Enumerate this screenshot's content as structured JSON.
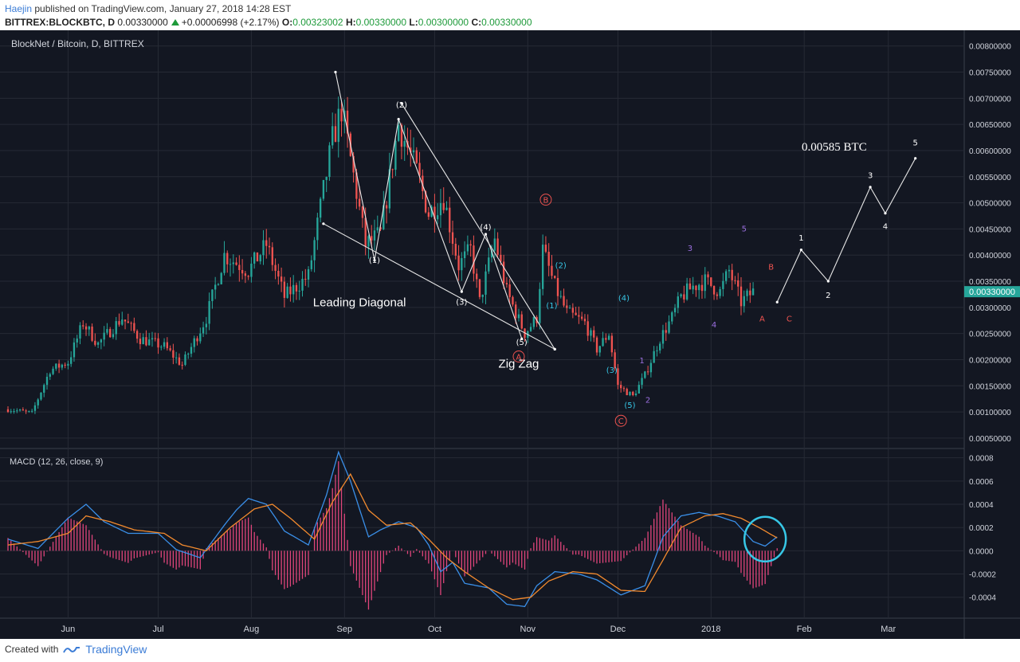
{
  "header": {
    "author": "Haejin",
    "published_text": "published on TradingView.com, January 27, 2018 14:28 EST",
    "symbol_line": "BITTREX:BLOCKBTC, D",
    "last_price": "0.00330000",
    "change": "+0.00006998 (+2.17%)",
    "o_label": "O:",
    "o_value": "0.00323002",
    "h_label": "H:",
    "h_value": "0.00330000",
    "l_label": "L:",
    "l_value": "0.00300000",
    "c_label": "C:",
    "c_value": "0.00330000"
  },
  "footer": {
    "created_with": "Created with",
    "brand": "TradingView"
  },
  "colors": {
    "up": "#26a69a",
    "down": "#ef5350",
    "bg": "#131722",
    "grid": "#262a35",
    "macd": "#3a8fe8",
    "signal": "#f28a2e",
    "hist": "#e0457b",
    "cyan": "#37c7e6",
    "purple": "#9b6fe0",
    "red": "#ef5350"
  },
  "chart_data": [
    {
      "type": "candlestick",
      "title": "BlockNet / Bitcoin, D, BITTREX",
      "ylim": [
        0.0003,
        0.0083
      ],
      "y_ticks": [
        "0.00050000",
        "0.00100000",
        "0.00150000",
        "0.00200000",
        "0.00250000",
        "0.00300000",
        "0.00350000",
        "0.00400000",
        "0.00450000",
        "0.00500000",
        "0.00550000",
        "0.00600000",
        "0.00650000",
        "0.00700000",
        "0.00750000",
        "0.00800000"
      ],
      "x_labels": [
        "Jun",
        "Jul",
        "Aug",
        "Sep",
        "Oct",
        "Nov",
        "Dec",
        "2018",
        "Feb",
        "Mar"
      ],
      "x_label_days": [
        20,
        50,
        81,
        112,
        142,
        173,
        203,
        234,
        265,
        293
      ],
      "last_price_tag": "0.00330000",
      "price_anchors": [
        [
          0,
          0.00105
        ],
        [
          8,
          0.00098
        ],
        [
          14,
          0.0018
        ],
        [
          20,
          0.00195
        ],
        [
          25,
          0.0027
        ],
        [
          30,
          0.0023
        ],
        [
          38,
          0.0028
        ],
        [
          44,
          0.0024
        ],
        [
          52,
          0.00225
        ],
        [
          58,
          0.0019
        ],
        [
          66,
          0.0028
        ],
        [
          72,
          0.004
        ],
        [
          80,
          0.0037
        ],
        [
          86,
          0.0042
        ],
        [
          92,
          0.0032
        ],
        [
          100,
          0.0036
        ],
        [
          108,
          0.0062
        ],
        [
          111,
          0.0068
        ],
        [
          116,
          0.0052
        ],
        [
          119,
          0.0042
        ],
        [
          124,
          0.0044
        ],
        [
          130,
          0.0065
        ],
        [
          136,
          0.0056
        ],
        [
          140,
          0.0048
        ],
        [
          145,
          0.0051
        ],
        [
          150,
          0.0038
        ],
        [
          154,
          0.0041
        ],
        [
          157,
          0.0031
        ],
        [
          162,
          0.0043
        ],
        [
          166,
          0.0033
        ],
        [
          172,
          0.0025
        ],
        [
          176,
          0.0028
        ],
        [
          178,
          0.0041
        ],
        [
          182,
          0.0034
        ],
        [
          186,
          0.0029
        ],
        [
          192,
          0.0027
        ],
        [
          196,
          0.0022
        ],
        [
          200,
          0.0025
        ],
        [
          203,
          0.0015
        ],
        [
          208,
          0.0013
        ],
        [
          212,
          0.0017
        ],
        [
          217,
          0.0024
        ],
        [
          221,
          0.0028
        ],
        [
          224,
          0.0032
        ],
        [
          228,
          0.0034
        ],
        [
          232,
          0.0035
        ],
        [
          237,
          0.0033
        ],
        [
          240,
          0.0037
        ],
        [
          244,
          0.0031
        ],
        [
          248,
          0.0033
        ]
      ],
      "annotations": [
        {
          "text": "Leading Diagonal",
          "day": 117,
          "price": 0.00302,
          "color": "#ffffff",
          "size": 15
        },
        {
          "text": "Zig Zag",
          "day": 170,
          "price": 0.00185,
          "color": "#ffffff",
          "size": 15
        },
        {
          "text": "0.00585 BTC",
          "day": 275,
          "price": 0.006,
          "color": "#ffffff",
          "size": 15
        },
        {
          "text": "(1)",
          "day": 122,
          "price": 0.00385,
          "color": "#ffffff",
          "size": 10
        },
        {
          "text": "(2)",
          "day": 131,
          "price": 0.00682,
          "color": "#ffffff",
          "size": 10
        },
        {
          "text": "(3)",
          "day": 151,
          "price": 0.00305,
          "color": "#ffffff",
          "size": 10
        },
        {
          "text": "(4)",
          "day": 159,
          "price": 0.00448,
          "color": "#ffffff",
          "size": 10
        },
        {
          "text": "(5)",
          "day": 171,
          "price": 0.00228,
          "color": "#ffffff",
          "size": 10
        },
        {
          "text": "(1)",
          "day": 181,
          "price": 0.00298,
          "color": "#37c7e6",
          "size": 10
        },
        {
          "text": "(2)",
          "day": 184,
          "price": 0.00375,
          "color": "#37c7e6",
          "size": 10
        },
        {
          "text": "(4)",
          "day": 205,
          "price": 0.00313,
          "color": "#37c7e6",
          "size": 10
        },
        {
          "text": "(3)",
          "day": 201,
          "price": 0.00175,
          "color": "#37c7e6",
          "size": 10
        },
        {
          "text": "(5)",
          "day": 207,
          "price": 0.00108,
          "color": "#37c7e6",
          "size": 10
        },
        {
          "text": "1",
          "day": 211,
          "price": 0.00193,
          "color": "#9b6fe0",
          "size": 10
        },
        {
          "text": "2",
          "day": 213,
          "price": 0.00118,
          "color": "#9b6fe0",
          "size": 10
        },
        {
          "text": "3",
          "day": 227,
          "price": 0.00408,
          "color": "#9b6fe0",
          "size": 10
        },
        {
          "text": "4",
          "day": 235,
          "price": 0.00262,
          "color": "#9b6fe0",
          "size": 10
        },
        {
          "text": "5",
          "day": 245,
          "price": 0.00445,
          "color": "#9b6fe0",
          "size": 10
        },
        {
          "text": "B",
          "day": 254,
          "price": 0.00372,
          "color": "#ef5350",
          "size": 10
        },
        {
          "text": "A",
          "day": 251,
          "price": 0.00273,
          "color": "#ef5350",
          "size": 10
        },
        {
          "text": "C",
          "day": 260,
          "price": 0.00273,
          "color": "#ef5350",
          "size": 10
        },
        {
          "text": "1",
          "day": 264,
          "price": 0.00428,
          "color": "#ffffff",
          "size": 10
        },
        {
          "text": "2",
          "day": 273,
          "price": 0.00318,
          "color": "#ffffff",
          "size": 10
        },
        {
          "text": "3",
          "day": 287,
          "price": 0.00547,
          "color": "#ffffff",
          "size": 10
        },
        {
          "text": "4",
          "day": 292,
          "price": 0.0045,
          "color": "#ffffff",
          "size": 10
        },
        {
          "text": "5",
          "day": 302,
          "price": 0.0061,
          "color": "#ffffff",
          "size": 10
        }
      ],
      "circled_labels": [
        {
          "text": "B",
          "day": 179,
          "price": 0.00506,
          "color": "#ef5350"
        },
        {
          "text": "A",
          "day": 170,
          "price": 0.00206,
          "color": "#ef5350"
        },
        {
          "text": "C",
          "day": 204,
          "price": 0.00083,
          "color": "#ef5350"
        }
      ],
      "white_lines": [
        [
          [
            109,
            0.0075
          ],
          [
            122,
            0.0039
          ],
          [
            130,
            0.0066
          ],
          [
            151,
            0.0033
          ],
          [
            159,
            0.0044
          ],
          [
            171,
            0.0024
          ]
        ],
        [
          [
            105,
            0.0046
          ],
          [
            182,
            0.0022
          ]
        ],
        [
          [
            131,
            0.0069
          ],
          [
            182,
            0.0022
          ]
        ],
        [
          [
            256,
            0.0031
          ],
          [
            264,
            0.0041
          ],
          [
            273,
            0.0035
          ],
          [
            287,
            0.0053
          ],
          [
            292,
            0.0048
          ],
          [
            302,
            0.00585
          ]
        ]
      ]
    },
    {
      "type": "line",
      "title": "MACD (12, 26, close, 9)",
      "ylim": [
        -0.00058,
        0.00088
      ],
      "y_ticks": [
        "0.0008",
        "0.0006",
        "0.0004",
        "0.0002",
        "0.0000",
        "-0.0002",
        "-0.0004"
      ],
      "series": [
        {
          "name": "MACD",
          "color": "#3a8fe8",
          "points": [
            [
              0,
              0.0001
            ],
            [
              10,
              2e-05
            ],
            [
              20,
              0.00028
            ],
            [
              26,
              0.0004
            ],
            [
              32,
              0.00025
            ],
            [
              40,
              0.00015
            ],
            [
              50,
              0.00015
            ],
            [
              56,
              1e-05
            ],
            [
              64,
              -6e-05
            ],
            [
              72,
              0.00022
            ],
            [
              76,
              0.00035
            ],
            [
              80,
              0.00045
            ],
            [
              86,
              0.0004
            ],
            [
              92,
              0.00017
            ],
            [
              100,
              5e-05
            ],
            [
              106,
              0.00048
            ],
            [
              110,
              0.00085
            ],
            [
              114,
              0.0006
            ],
            [
              120,
              0.00012
            ],
            [
              124,
              0.00018
            ],
            [
              130,
              0.00025
            ],
            [
              136,
              0.0002
            ],
            [
              140,
              5e-05
            ],
            [
              144,
              -0.00018
            ],
            [
              148,
              -0.0001
            ],
            [
              152,
              -0.00028
            ],
            [
              160,
              -0.00032
            ],
            [
              166,
              -0.00046
            ],
            [
              172,
              -0.00048
            ],
            [
              176,
              -0.0003
            ],
            [
              182,
              -0.00018
            ],
            [
              190,
              -0.0002
            ],
            [
              196,
              -0.00025
            ],
            [
              204,
              -0.00038
            ],
            [
              212,
              -0.0003
            ],
            [
              218,
              0.00012
            ],
            [
              224,
              0.0003
            ],
            [
              230,
              0.00033
            ],
            [
              236,
              0.0003
            ],
            [
              242,
              0.00025
            ],
            [
              248,
              8e-05
            ],
            [
              252,
              4e-05
            ],
            [
              256,
              0.00012
            ]
          ]
        },
        {
          "name": "Signal",
          "color": "#f28a2e",
          "points": [
            [
              0,
              5e-05
            ],
            [
              10,
              8e-05
            ],
            [
              20,
              0.00015
            ],
            [
              26,
              0.0003
            ],
            [
              34,
              0.00025
            ],
            [
              42,
              0.00018
            ],
            [
              52,
              0.00015
            ],
            [
              58,
              5e-05
            ],
            [
              66,
              0
            ],
            [
              74,
              0.0002
            ],
            [
              82,
              0.00036
            ],
            [
              88,
              0.0004
            ],
            [
              94,
              0.00028
            ],
            [
              102,
              0.0001
            ],
            [
              108,
              0.00042
            ],
            [
              114,
              0.00066
            ],
            [
              120,
              0.00035
            ],
            [
              126,
              0.00022
            ],
            [
              134,
              0.00024
            ],
            [
              140,
              0.0001
            ],
            [
              146,
              -6e-05
            ],
            [
              152,
              -0.00018
            ],
            [
              160,
              -0.00032
            ],
            [
              168,
              -0.00042
            ],
            [
              174,
              -0.0004
            ],
            [
              180,
              -0.00026
            ],
            [
              188,
              -0.00018
            ],
            [
              196,
              -0.0002
            ],
            [
              204,
              -0.00034
            ],
            [
              212,
              -0.00035
            ],
            [
              218,
              -8e-05
            ],
            [
              224,
              0.0002
            ],
            [
              232,
              0.0003
            ],
            [
              238,
              0.00032
            ],
            [
              244,
              0.00028
            ],
            [
              250,
              0.0002
            ],
            [
              256,
              0.00011
            ]
          ]
        }
      ],
      "zoom_circle": {
        "day": 252,
        "value": 0.0001,
        "color": "#37c7e6"
      }
    }
  ]
}
